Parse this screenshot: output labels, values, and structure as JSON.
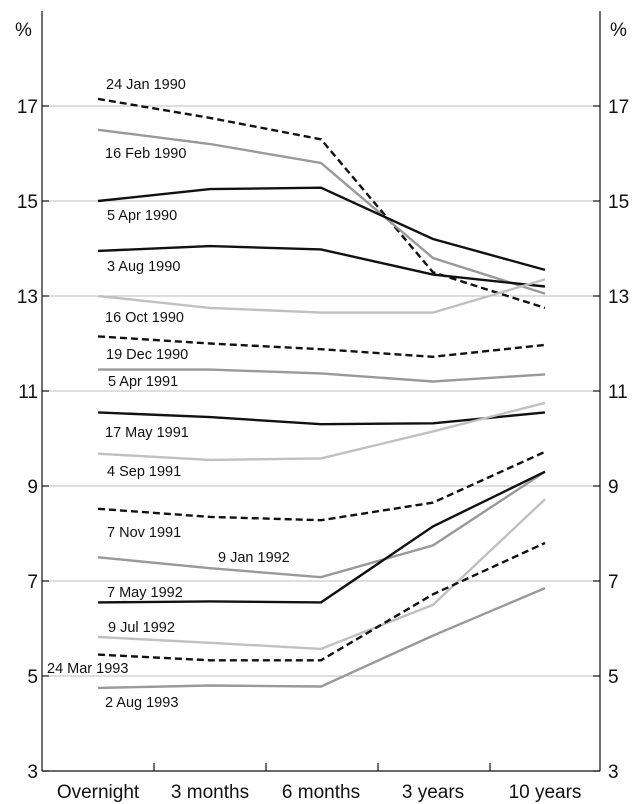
{
  "chart_data": {
    "type": "line",
    "title": "",
    "xlabel": "",
    "ylabel": "%",
    "y_unit_left": "%",
    "y_unit_right": "%",
    "ylim": [
      3,
      19
    ],
    "yticks": [
      3,
      5,
      7,
      9,
      11,
      13,
      15,
      17
    ],
    "grid": true,
    "categories": [
      "Overnight",
      "3 months",
      "6 months",
      "3 years",
      "10 years"
    ],
    "series": [
      {
        "name": "24 Jan 1990",
        "style": "dashed",
        "color": "#111111",
        "values": [
          17.15,
          16.75,
          16.3,
          13.5,
          12.75
        ]
      },
      {
        "name": "16 Feb 1990",
        "style": "solid",
        "color": "#999999",
        "values": [
          16.5,
          16.2,
          15.8,
          13.8,
          13.05
        ]
      },
      {
        "name": "5 Apr 1990",
        "style": "solid",
        "color": "#111111",
        "values": [
          15.0,
          15.25,
          15.28,
          14.2,
          13.55
        ]
      },
      {
        "name": "3 Aug 1990",
        "style": "solid",
        "color": "#111111",
        "values": [
          13.95,
          14.05,
          13.98,
          13.45,
          13.2
        ]
      },
      {
        "name": "16 Oct 1990",
        "style": "solid",
        "color": "#c0c0c0",
        "values": [
          13.0,
          12.75,
          12.65,
          12.65,
          13.35
        ]
      },
      {
        "name": "19 Dec 1990",
        "style": "dashed",
        "color": "#111111",
        "values": [
          12.15,
          12.0,
          11.88,
          11.72,
          11.97
        ]
      },
      {
        "name": "5 Apr 1991",
        "style": "solid",
        "color": "#999999",
        "values": [
          11.45,
          11.45,
          11.37,
          11.2,
          11.35
        ]
      },
      {
        "name": "17 May 1991",
        "style": "solid",
        "color": "#111111",
        "values": [
          10.55,
          10.45,
          10.3,
          10.32,
          10.55
        ]
      },
      {
        "name": "4 Sep 1991",
        "style": "solid",
        "color": "#c0c0c0",
        "values": [
          9.68,
          9.55,
          9.58,
          10.15,
          10.75
        ]
      },
      {
        "name": "7 Nov 1991",
        "style": "dashed",
        "color": "#111111",
        "values": [
          8.52,
          8.35,
          8.28,
          8.65,
          9.72
        ]
      },
      {
        "name": "9 Jan 1992",
        "style": "solid",
        "color": "#999999",
        "values": [
          7.5,
          7.27,
          7.08,
          7.75,
          9.3
        ]
      },
      {
        "name": "7 May 1992",
        "style": "solid",
        "color": "#111111",
        "values": [
          6.55,
          6.57,
          6.55,
          8.15,
          9.3
        ]
      },
      {
        "name": "9 Jul 1992",
        "style": "solid",
        "color": "#c0c0c0",
        "values": [
          5.82,
          5.7,
          5.57,
          6.5,
          8.72
        ]
      },
      {
        "name": "24 Mar 1993",
        "style": "dashed",
        "color": "#111111",
        "values": [
          5.45,
          5.33,
          5.33,
          6.72,
          7.8
        ]
      },
      {
        "name": "2 Aug 1993",
        "style": "solid",
        "color": "#999999",
        "values": [
          4.75,
          4.8,
          4.78,
          5.85,
          6.85
        ]
      }
    ]
  }
}
